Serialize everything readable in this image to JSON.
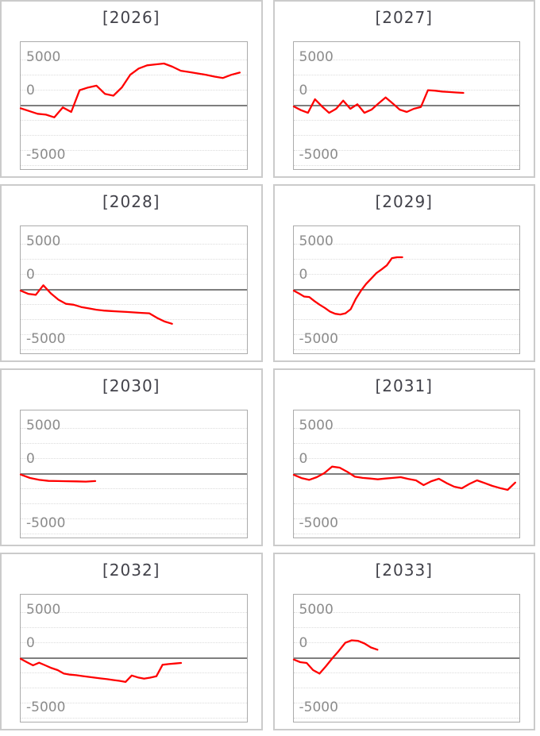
{
  "page": {
    "background": "#ffffff"
  },
  "colors": {
    "series_red": "#ff0000",
    "zero_axis_line": "#7e7e7e",
    "gridline": "#dcdcdc",
    "tick_label": "#8c8c8c",
    "title_text": "#42424a",
    "card_border": "#cbcbcb",
    "plot_border": "#ababab"
  },
  "chart_data": [
    {
      "type": "line",
      "title": "[2026]",
      "y_tick_labels": [
        "5000",
        "0",
        "-5000"
      ],
      "y_ticks": [
        5000,
        0,
        -5000
      ],
      "ylim": [
        -7000,
        7000
      ],
      "grid": "dotted-horizontal",
      "legend": "none",
      "line_color": "#ff0000",
      "x_coverage": 0.97,
      "values": [
        -300,
        -600,
        -900,
        -1000,
        -1300,
        -200,
        -700,
        1700,
        2000,
        2200,
        1300,
        1100,
        2000,
        3400,
        4100,
        4450,
        4550,
        4650,
        4300,
        3850,
        3700,
        3550,
        3400,
        3200,
        3050,
        3400,
        3650
      ]
    },
    {
      "type": "line",
      "title": "[2027]",
      "y_tick_labels": [
        "5000",
        "0",
        "-5000"
      ],
      "y_ticks": [
        5000,
        0,
        -5000
      ],
      "ylim": [
        -7000,
        7000
      ],
      "grid": "dotted-horizontal",
      "legend": "none",
      "line_color": "#ff0000",
      "x_coverage": 0.75,
      "values": [
        -100,
        -500,
        -800,
        700,
        -100,
        -800,
        -350,
        550,
        -350,
        150,
        -800,
        -450,
        250,
        900,
        250,
        -450,
        -700,
        -350,
        -150,
        1700,
        1650,
        1550,
        1500,
        1450,
        1400
      ]
    },
    {
      "type": "line",
      "title": "[2028]",
      "y_tick_labels": [
        "5000",
        "0",
        "-5000"
      ],
      "y_ticks": [
        5000,
        0,
        -5000
      ],
      "ylim": [
        -7000,
        7000
      ],
      "grid": "dotted-horizontal",
      "legend": "none",
      "line_color": "#ff0000",
      "x_coverage": 0.67,
      "values": [
        -100,
        -450,
        -550,
        500,
        -400,
        -1100,
        -1550,
        -1650,
        -1900,
        -2050,
        -2200,
        -2300,
        -2350,
        -2400,
        -2450,
        -2500,
        -2550,
        -2600,
        -3100,
        -3500,
        -3750
      ]
    },
    {
      "type": "line",
      "title": "[2029]",
      "y_tick_labels": [
        "5000",
        "0",
        "-5000"
      ],
      "y_ticks": [
        5000,
        0,
        -5000
      ],
      "ylim": [
        -7000,
        7000
      ],
      "grid": "dotted-horizontal",
      "legend": "none",
      "line_color": "#ff0000",
      "x_coverage": 0.48,
      "values": [
        -100,
        -400,
        -750,
        -800,
        -1250,
        -1650,
        -2000,
        -2400,
        -2650,
        -2730,
        -2600,
        -2150,
        -1000,
        -100,
        650,
        1250,
        1850,
        2250,
        2700,
        3500,
        3600,
        3600
      ]
    },
    {
      "type": "line",
      "title": "[2030]",
      "y_tick_labels": [
        "5000",
        "0",
        "-5000"
      ],
      "y_ticks": [
        5000,
        0,
        -5000
      ],
      "ylim": [
        -7000,
        7000
      ],
      "grid": "dotted-horizontal",
      "legend": "none",
      "line_color": "#ff0000",
      "x_coverage": 0.33,
      "values": [
        -60,
        -440,
        -650,
        -760,
        -780,
        -800,
        -820,
        -840,
        -780
      ]
    },
    {
      "type": "line",
      "title": "[2031]",
      "y_tick_labels": [
        "5000",
        "0",
        "-5000"
      ],
      "y_ticks": [
        5000,
        0,
        -5000
      ],
      "ylim": [
        -7000,
        7000
      ],
      "grid": "dotted-horizontal",
      "legend": "none",
      "line_color": "#ff0000",
      "x_coverage": 0.98,
      "values": [
        -100,
        -450,
        -650,
        -350,
        100,
        820,
        700,
        250,
        -300,
        -430,
        -500,
        -590,
        -500,
        -430,
        -350,
        -550,
        -700,
        -1230,
        -800,
        -530,
        -1000,
        -1400,
        -1580,
        -1100,
        -700,
        -1000,
        -1320,
        -1550,
        -1750,
        -950
      ]
    },
    {
      "type": "line",
      "title": "[2032]",
      "y_tick_labels": [
        "5000",
        "0",
        "-5000"
      ],
      "y_ticks": [
        5000,
        0,
        -5000
      ],
      "ylim": [
        -7000,
        7000
      ],
      "grid": "dotted-horizontal",
      "legend": "none",
      "line_color": "#ff0000",
      "x_coverage": 0.71,
      "values": [
        -60,
        -440,
        -790,
        -500,
        -790,
        -1090,
        -1320,
        -1700,
        -1820,
        -1880,
        -1970,
        -2060,
        -2150,
        -2240,
        -2320,
        -2410,
        -2500,
        -2620,
        -1910,
        -2120,
        -2260,
        -2150,
        -2000,
        -730,
        -650,
        -590,
        -530
      ]
    },
    {
      "type": "line",
      "title": "[2033]",
      "y_tick_labels": [
        "5000",
        "0",
        "-5000"
      ],
      "y_ticks": [
        5000,
        0,
        -5000
      ],
      "ylim": [
        -7000,
        7000
      ],
      "grid": "dotted-horizontal",
      "legend": "none",
      "line_color": "#ff0000",
      "x_coverage": 0.37,
      "values": [
        -150,
        -440,
        -530,
        -1320,
        -1700,
        -880,
        0,
        820,
        1700,
        1970,
        1910,
        1620,
        1180,
        940
      ]
    }
  ]
}
